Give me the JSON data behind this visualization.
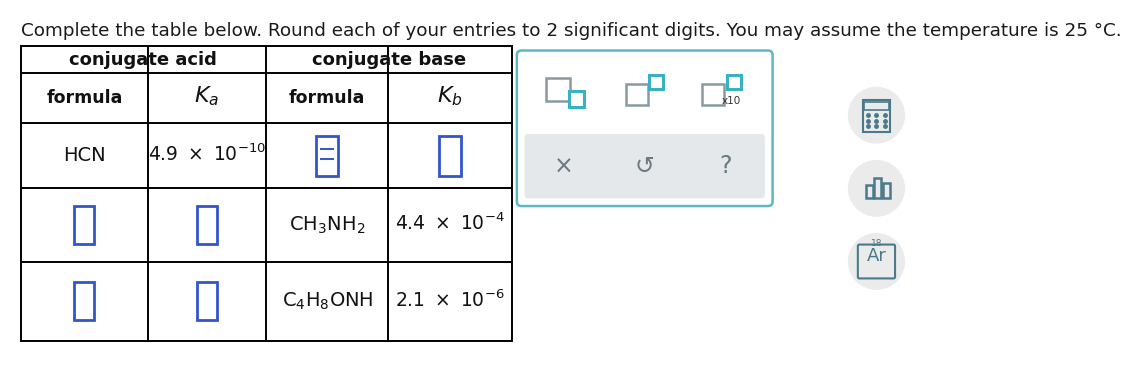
{
  "title": "Complete the table below. Round each of your entries to 2 significant digits. You may assume the temperature is 25 °C.",
  "bg_color": "#ffffff",
  "input_box_color": "#3355cc",
  "popup_border_color": "#5bb8c4",
  "popup_gray_color": "#e4e8ea",
  "popup_icon_gray": "#6a7a80",
  "popup_sq_gray": "#8899a0",
  "popup_sq_teal": "#38b2c0",
  "sidebar_circle_color": "#ebebeb",
  "sidebar_icon_color": "#4a7a8a"
}
